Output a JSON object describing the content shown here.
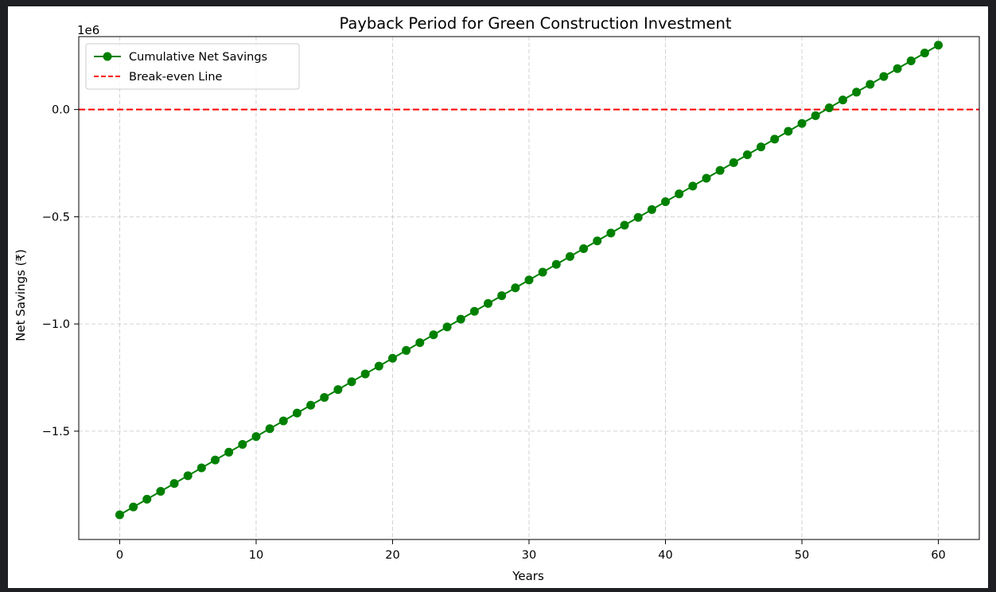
{
  "chart_data": {
    "type": "line",
    "title": "Payback Period for Green Construction Investment",
    "xlabel": "Years",
    "ylabel": "Net Savings (₹)",
    "y_offset_label": "1e6",
    "xlim": [
      -3,
      63
    ],
    "ylim": [
      -2.005,
      0.34
    ],
    "x_ticks": [
      {
        "value": 0,
        "label": "0"
      },
      {
        "value": 10,
        "label": "10"
      },
      {
        "value": 20,
        "label": "20"
      },
      {
        "value": 30,
        "label": "30"
      },
      {
        "value": 40,
        "label": "40"
      },
      {
        "value": 50,
        "label": "50"
      },
      {
        "value": 60,
        "label": "60"
      }
    ],
    "y_ticks": [
      {
        "value": 0.0,
        "label": "0.0"
      },
      {
        "value": -0.5,
        "label": "−0.5"
      },
      {
        "value": -1.0,
        "label": "−1.0"
      },
      {
        "value": -1.5,
        "label": "−1.5"
      }
    ],
    "grid": true,
    "legend_position": "upper-left",
    "series": [
      {
        "name": "Cumulative Net Savings",
        "color": "#008000",
        "marker": "circle",
        "x": [
          0,
          1,
          2,
          3,
          4,
          5,
          6,
          7,
          8,
          9,
          10,
          11,
          12,
          13,
          14,
          15,
          16,
          17,
          18,
          19,
          20,
          21,
          22,
          23,
          24,
          25,
          26,
          27,
          28,
          29,
          30,
          31,
          32,
          33,
          34,
          35,
          36,
          37,
          38,
          39,
          40,
          41,
          42,
          43,
          44,
          45,
          46,
          47,
          48,
          49,
          50,
          51,
          52,
          53,
          54,
          55,
          56,
          57,
          58,
          59,
          60
        ],
        "y": [
          -1.89,
          -1.8535,
          -1.817,
          -1.7805,
          -1.744,
          -1.7075,
          -1.671,
          -1.6345,
          -1.598,
          -1.5615,
          -1.525,
          -1.4885,
          -1.452,
          -1.4155,
          -1.379,
          -1.3425,
          -1.306,
          -1.2695,
          -1.233,
          -1.1965,
          -1.16,
          -1.1235,
          -1.087,
          -1.0505,
          -1.014,
          -0.9775,
          -0.941,
          -0.9045,
          -0.868,
          -0.8315,
          -0.795,
          -0.7585,
          -0.722,
          -0.6855,
          -0.649,
          -0.6125,
          -0.576,
          -0.5395,
          -0.503,
          -0.4665,
          -0.43,
          -0.3935,
          -0.357,
          -0.3205,
          -0.284,
          -0.2475,
          -0.211,
          -0.1745,
          -0.138,
          -0.1015,
          -0.065,
          -0.0285,
          0.008,
          0.0445,
          0.081,
          0.1175,
          0.154,
          0.1905,
          0.227,
          0.2635,
          0.3
        ]
      }
    ],
    "reference_lines": [
      {
        "name": "Break-even Line",
        "y": 0,
        "color": "#ff0000",
        "style": "dashed"
      }
    ]
  }
}
